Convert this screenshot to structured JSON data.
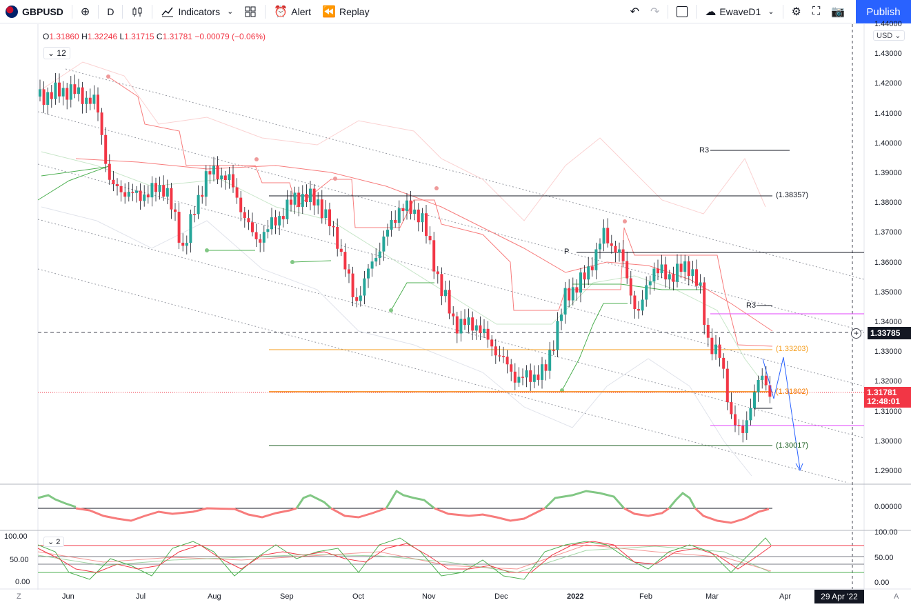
{
  "toolbar": {
    "symbol": "GBPUSD",
    "interval": "D",
    "indicators_label": "Indicators",
    "alert_label": "Alert",
    "replay_label": "Replay",
    "layout_name": "EwaveD1",
    "publish_label": "Publish"
  },
  "legend": {
    "open_label": "O",
    "open": "1.31860",
    "high_label": "H",
    "high": "1.32246",
    "low_label": "L",
    "low": "1.31715",
    "close_label": "C",
    "close": "1.31781",
    "change": "−0.00079 (−0.06%)"
  },
  "indicator_badge": "12",
  "sub_badge": "2",
  "currency": "USD",
  "price_axis": [
    "1.44000",
    "1.43000",
    "1.42000",
    "1.41000",
    "1.40000",
    "1.39000",
    "1.38000",
    "1.37000",
    "1.36000",
    "1.35000",
    "1.34000",
    "1.33000",
    "1.32000",
    "1.31000",
    "1.30000",
    "1.29000"
  ],
  "osc_axis": [
    "0.00000"
  ],
  "stoch_axis_right": [
    "100.00",
    "50.00",
    "0.00"
  ],
  "stoch_axis_left": [
    "100.00",
    "50.00",
    "0.00"
  ],
  "time_axis": [
    "Jun",
    "Jul",
    "Aug",
    "Sep",
    "Oct",
    "Nov",
    "Dec",
    "2022",
    "Feb",
    "Mar",
    "Apr"
  ],
  "time_axis_date": "29 Apr '22",
  "last_price": "1.31781",
  "countdown": "12:48:01",
  "crosshair_price": "1.33785",
  "annotations": {
    "r3_top": "R3",
    "p_label": "P",
    "r3_mid": "R3",
    "level_38357": "(1.38357)",
    "level_33203": "(1.33203)",
    "level_31802": "(1.31802)",
    "level_30017": "(1.30017)"
  },
  "bottom_left": "Z",
  "bottom_right": "A",
  "colors": {
    "up": "#26a69a",
    "down": "#f23645",
    "accent": "#2962ff",
    "orange": "#f59d1b",
    "magenta": "#e040fb"
  }
}
